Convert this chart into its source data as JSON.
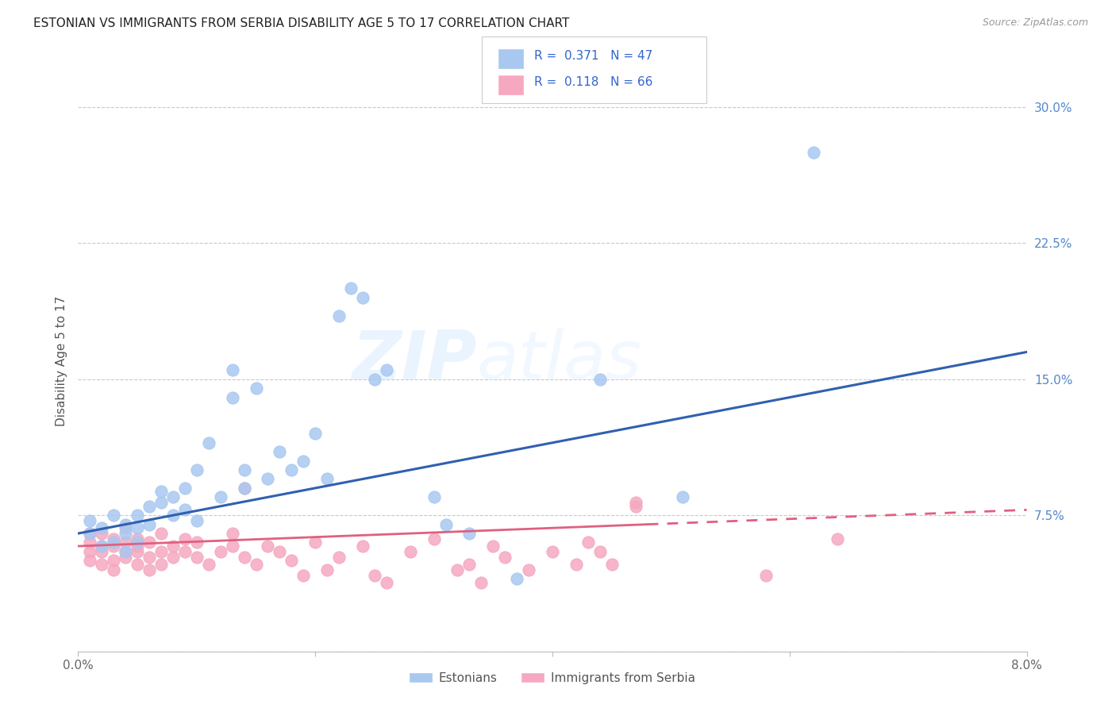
{
  "title": "ESTONIAN VS IMMIGRANTS FROM SERBIA DISABILITY AGE 5 TO 17 CORRELATION CHART",
  "source": "Source: ZipAtlas.com",
  "ylabel": "Disability Age 5 to 17",
  "xlim": [
    0.0,
    0.08
  ],
  "ylim": [
    0.0,
    0.32
  ],
  "xticks": [
    0.0,
    0.02,
    0.04,
    0.06,
    0.08
  ],
  "xtick_labels": [
    "0.0%",
    "",
    "",
    "",
    "8.0%"
  ],
  "yticks_right": [
    0.0,
    0.075,
    0.15,
    0.225,
    0.3
  ],
  "ytick_labels_right": [
    "",
    "7.5%",
    "15.0%",
    "22.5%",
    "30.0%"
  ],
  "blue_R": "0.371",
  "blue_N": "47",
  "pink_R": "0.118",
  "pink_N": "66",
  "blue_color": "#A8C8F0",
  "pink_color": "#F5A8C0",
  "blue_line_color": "#3060B0",
  "pink_line_color": "#E06080",
  "legend_label_blue": "Estonians",
  "legend_label_pink": "Immigrants from Serbia",
  "watermark_zip": "ZIP",
  "watermark_atlas": "atlas",
  "blue_scatter_x": [
    0.001,
    0.001,
    0.002,
    0.002,
    0.003,
    0.003,
    0.004,
    0.004,
    0.004,
    0.005,
    0.005,
    0.005,
    0.006,
    0.006,
    0.007,
    0.007,
    0.008,
    0.008,
    0.009,
    0.009,
    0.01,
    0.01,
    0.011,
    0.012,
    0.013,
    0.013,
    0.014,
    0.014,
    0.015,
    0.016,
    0.017,
    0.018,
    0.019,
    0.02,
    0.021,
    0.022,
    0.023,
    0.024,
    0.025,
    0.026,
    0.03,
    0.031,
    0.033,
    0.037,
    0.044,
    0.051,
    0.062
  ],
  "blue_scatter_y": [
    0.065,
    0.072,
    0.058,
    0.068,
    0.06,
    0.075,
    0.055,
    0.065,
    0.07,
    0.06,
    0.068,
    0.075,
    0.08,
    0.07,
    0.082,
    0.088,
    0.075,
    0.085,
    0.078,
    0.09,
    0.072,
    0.1,
    0.115,
    0.085,
    0.14,
    0.155,
    0.09,
    0.1,
    0.145,
    0.095,
    0.11,
    0.1,
    0.105,
    0.12,
    0.095,
    0.185,
    0.2,
    0.195,
    0.15,
    0.155,
    0.085,
    0.07,
    0.065,
    0.04,
    0.15,
    0.085,
    0.275
  ],
  "pink_scatter_x": [
    0.001,
    0.001,
    0.001,
    0.001,
    0.002,
    0.002,
    0.002,
    0.002,
    0.003,
    0.003,
    0.003,
    0.003,
    0.004,
    0.004,
    0.004,
    0.004,
    0.005,
    0.005,
    0.005,
    0.005,
    0.006,
    0.006,
    0.006,
    0.007,
    0.007,
    0.007,
    0.008,
    0.008,
    0.009,
    0.009,
    0.01,
    0.01,
    0.011,
    0.012,
    0.013,
    0.013,
    0.014,
    0.014,
    0.015,
    0.016,
    0.017,
    0.018,
    0.019,
    0.02,
    0.021,
    0.022,
    0.024,
    0.025,
    0.026,
    0.028,
    0.03,
    0.032,
    0.033,
    0.034,
    0.035,
    0.036,
    0.038,
    0.04,
    0.042,
    0.043,
    0.044,
    0.045,
    0.047,
    0.047,
    0.058,
    0.064
  ],
  "pink_scatter_y": [
    0.06,
    0.065,
    0.055,
    0.05,
    0.058,
    0.048,
    0.065,
    0.055,
    0.058,
    0.062,
    0.05,
    0.045,
    0.068,
    0.055,
    0.06,
    0.052,
    0.062,
    0.055,
    0.048,
    0.058,
    0.06,
    0.052,
    0.045,
    0.065,
    0.055,
    0.048,
    0.058,
    0.052,
    0.062,
    0.055,
    0.06,
    0.052,
    0.048,
    0.055,
    0.065,
    0.058,
    0.09,
    0.052,
    0.048,
    0.058,
    0.055,
    0.05,
    0.042,
    0.06,
    0.045,
    0.052,
    0.058,
    0.042,
    0.038,
    0.055,
    0.062,
    0.045,
    0.048,
    0.038,
    0.058,
    0.052,
    0.045,
    0.055,
    0.048,
    0.06,
    0.055,
    0.048,
    0.08,
    0.082,
    0.042,
    0.062
  ]
}
